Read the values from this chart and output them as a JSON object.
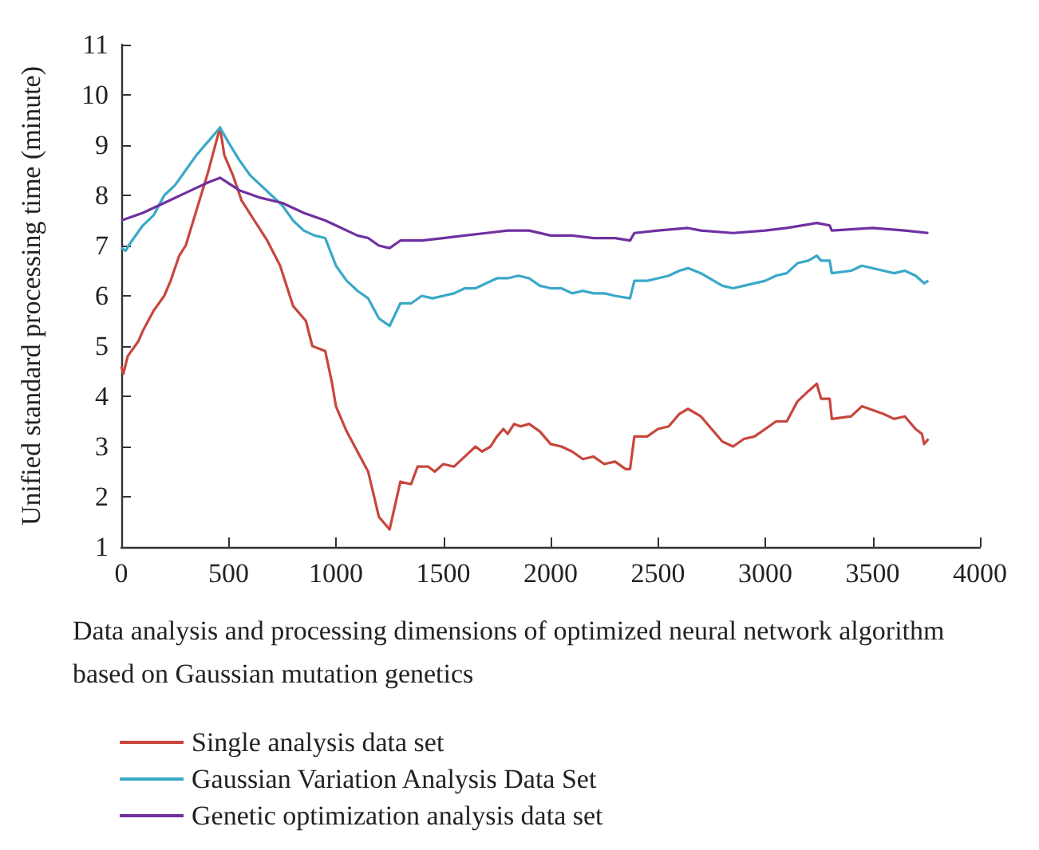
{
  "chart_data": {
    "type": "line",
    "xlabel": "Data analysis and processing dimensions of optimized neural network algorithm based on Gaussian mutation genetics",
    "ylabel": "Unified standard processing time (minute)",
    "xlim": [
      0,
      4000
    ],
    "xticks": [
      0,
      500,
      1000,
      1500,
      2000,
      2500,
      3000,
      3500,
      4000
    ],
    "ylim": [
      1,
      11
    ],
    "yticks": [
      1,
      2,
      3,
      4,
      5,
      6,
      7,
      8,
      9,
      10,
      11
    ],
    "grid": false,
    "legend": "bottom",
    "marker": "none",
    "line_style": "solid",
    "series": [
      {
        "name": "Single analysis data set",
        "color": "#c8463c",
        "x": [
          0,
          10,
          30,
          80,
          100,
          150,
          200,
          230,
          270,
          300,
          350,
          400,
          460,
          480,
          520,
          560,
          620,
          680,
          740,
          800,
          860,
          890,
          950,
          980,
          1000,
          1050,
          1100,
          1150,
          1200,
          1250,
          1300,
          1350,
          1380,
          1430,
          1460,
          1500,
          1550,
          1600,
          1650,
          1680,
          1720,
          1750,
          1780,
          1800,
          1830,
          1860,
          1900,
          1950,
          2000,
          2050,
          2100,
          2150,
          2200,
          2250,
          2300,
          2350,
          2370,
          2390,
          2450,
          2500,
          2550,
          2600,
          2640,
          2700,
          2800,
          2850,
          2900,
          2950,
          3000,
          3050,
          3100,
          3150,
          3200,
          3240,
          3260,
          3300,
          3310,
          3400,
          3450,
          3550,
          3600,
          3650,
          3700,
          3730,
          3740,
          3760
        ],
        "values": [
          4.6,
          4.45,
          4.8,
          5.1,
          5.3,
          5.7,
          6.0,
          6.3,
          6.8,
          7.0,
          7.7,
          8.4,
          9.35,
          8.8,
          8.4,
          7.9,
          7.5,
          7.1,
          6.6,
          5.8,
          5.5,
          5.0,
          4.9,
          4.3,
          3.8,
          3.3,
          2.9,
          2.5,
          1.6,
          1.35,
          2.3,
          2.25,
          2.6,
          2.6,
          2.5,
          2.65,
          2.6,
          2.8,
          3.0,
          2.9,
          3.0,
          3.2,
          3.35,
          3.25,
          3.45,
          3.4,
          3.45,
          3.3,
          3.05,
          3.0,
          2.9,
          2.75,
          2.8,
          2.65,
          2.7,
          2.55,
          2.55,
          3.2,
          3.2,
          3.35,
          3.4,
          3.65,
          3.75,
          3.6,
          3.1,
          3.0,
          3.15,
          3.2,
          3.35,
          3.5,
          3.5,
          3.9,
          4.1,
          4.25,
          3.95,
          3.95,
          3.55,
          3.6,
          3.8,
          3.65,
          3.55,
          3.6,
          3.35,
          3.25,
          3.05,
          3.15
        ]
      },
      {
        "name": "Gaussian Variation Analysis Data Set",
        "color": "#3aa8c8",
        "x": [
          0,
          20,
          50,
          100,
          150,
          200,
          250,
          300,
          350,
          400,
          460,
          500,
          550,
          600,
          650,
          700,
          750,
          800,
          850,
          900,
          950,
          1000,
          1050,
          1100,
          1150,
          1200,
          1250,
          1300,
          1350,
          1400,
          1450,
          1500,
          1550,
          1600,
          1650,
          1700,
          1750,
          1800,
          1850,
          1900,
          1950,
          2000,
          2050,
          2100,
          2150,
          2200,
          2250,
          2300,
          2370,
          2390,
          2450,
          2500,
          2550,
          2600,
          2640,
          2700,
          2800,
          2850,
          2900,
          3000,
          3050,
          3100,
          3150,
          3200,
          3240,
          3260,
          3300,
          3310,
          3400,
          3450,
          3550,
          3600,
          3650,
          3700,
          3740,
          3760
        ],
        "values": [
          6.95,
          6.9,
          7.1,
          7.4,
          7.6,
          8.0,
          8.2,
          8.5,
          8.8,
          9.05,
          9.35,
          9.05,
          8.7,
          8.4,
          8.2,
          8.0,
          7.8,
          7.5,
          7.3,
          7.2,
          7.15,
          6.6,
          6.3,
          6.1,
          5.95,
          5.55,
          5.4,
          5.85,
          5.85,
          6.0,
          5.95,
          6.0,
          6.05,
          6.15,
          6.15,
          6.25,
          6.35,
          6.35,
          6.4,
          6.35,
          6.2,
          6.15,
          6.15,
          6.05,
          6.1,
          6.05,
          6.05,
          6.0,
          5.95,
          6.3,
          6.3,
          6.35,
          6.4,
          6.5,
          6.55,
          6.45,
          6.2,
          6.15,
          6.2,
          6.3,
          6.4,
          6.45,
          6.65,
          6.7,
          6.8,
          6.7,
          6.7,
          6.45,
          6.5,
          6.6,
          6.5,
          6.45,
          6.5,
          6.4,
          6.25,
          6.3
        ]
      },
      {
        "name": "Genetic optimization analysis data set",
        "color": "#7030a0",
        "x": [
          0,
          100,
          200,
          300,
          400,
          460,
          550,
          650,
          750,
          850,
          950,
          1000,
          1100,
          1150,
          1200,
          1250,
          1300,
          1400,
          1500,
          1600,
          1700,
          1800,
          1900,
          2000,
          2100,
          2200,
          2300,
          2370,
          2390,
          2500,
          2640,
          2700,
          2850,
          3000,
          3100,
          3240,
          3300,
          3310,
          3500,
          3650,
          3760
        ],
        "values": [
          7.5,
          7.65,
          7.85,
          8.05,
          8.25,
          8.35,
          8.1,
          7.95,
          7.85,
          7.65,
          7.5,
          7.4,
          7.2,
          7.15,
          7.0,
          6.95,
          7.1,
          7.1,
          7.15,
          7.2,
          7.25,
          7.3,
          7.3,
          7.2,
          7.2,
          7.15,
          7.15,
          7.1,
          7.25,
          7.3,
          7.35,
          7.3,
          7.25,
          7.3,
          7.35,
          7.45,
          7.4,
          7.3,
          7.35,
          7.3,
          7.25
        ]
      }
    ]
  }
}
